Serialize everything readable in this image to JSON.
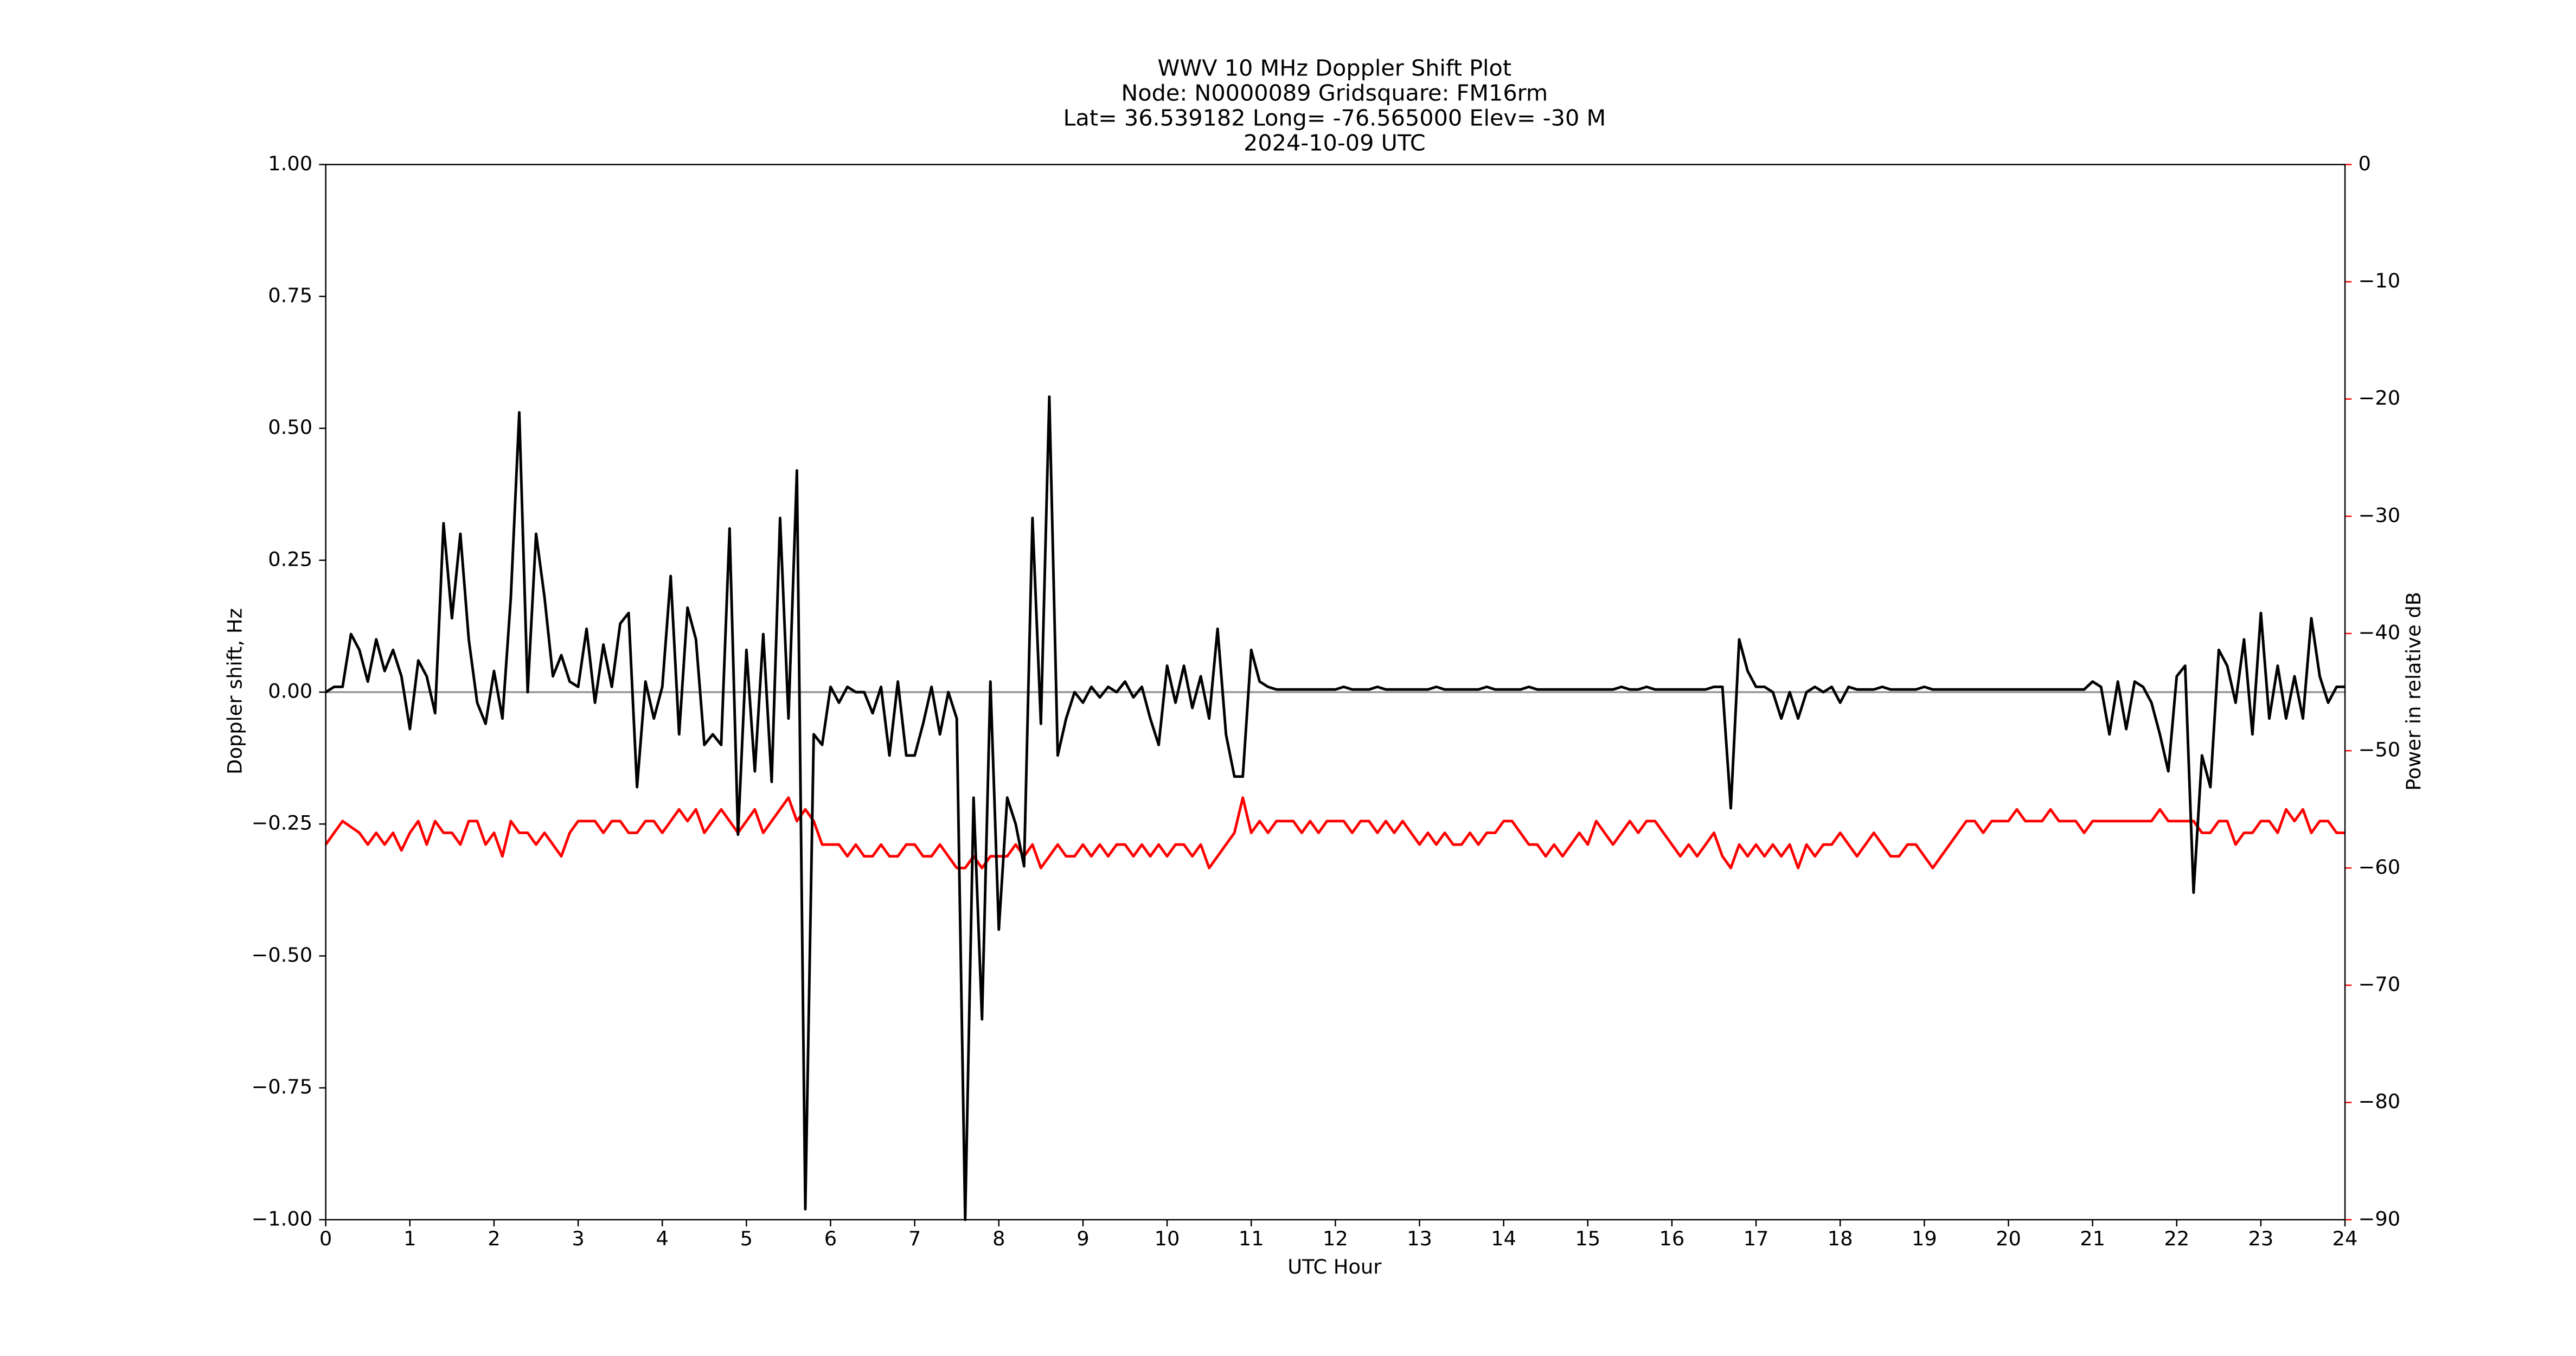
{
  "chart_data": {
    "type": "line",
    "title": [
      "WWV 10 MHz Doppler Shift Plot",
      "Node:  N0000089     Gridsquare:  FM16rm",
      "Lat= 36.539182    Long= -76.565000    Elev= -30 M",
      "2024-10-09  UTC"
    ],
    "xlabel": "UTC Hour",
    "ylabel": "Doppler shift, Hz",
    "y2label": "Power in relative dB",
    "x": [
      0,
      0.1,
      0.2,
      0.3,
      0.4,
      0.5,
      0.6,
      0.7,
      0.8,
      0.9,
      1,
      1.1,
      1.2,
      1.3,
      1.4,
      1.5,
      1.6,
      1.7,
      1.8,
      1.9,
      2,
      2.1,
      2.2,
      2.3,
      2.4,
      2.5,
      2.6,
      2.7,
      2.8,
      2.9,
      3,
      3.1,
      3.2,
      3.3,
      3.4,
      3.5,
      3.6,
      3.7,
      3.8,
      3.9,
      4,
      4.1,
      4.2,
      4.3,
      4.4,
      4.5,
      4.6,
      4.7,
      4.8,
      4.9,
      5,
      5.1,
      5.2,
      5.3,
      5.4,
      5.5,
      5.6,
      5.7,
      5.8,
      5.9,
      6,
      6.1,
      6.2,
      6.3,
      6.4,
      6.5,
      6.6,
      6.7,
      6.8,
      6.9,
      7,
      7.1,
      7.2,
      7.3,
      7.4,
      7.5,
      7.6,
      7.7,
      7.8,
      7.9,
      8,
      8.1,
      8.2,
      8.3,
      8.4,
      8.5,
      8.6,
      8.7,
      8.8,
      8.9,
      9,
      9.1,
      9.2,
      9.3,
      9.4,
      9.5,
      9.6,
      9.7,
      9.8,
      9.9,
      10,
      10.1,
      10.2,
      10.3,
      10.4,
      10.5,
      10.6,
      10.7,
      10.8,
      10.9,
      11,
      11.1,
      11.2,
      11.3,
      11.4,
      11.5,
      11.6,
      11.7,
      11.8,
      11.9,
      12,
      12.1,
      12.2,
      12.3,
      12.4,
      12.5,
      12.6,
      12.7,
      12.8,
      12.9,
      13,
      13.1,
      13.2,
      13.3,
      13.4,
      13.5,
      13.6,
      13.7,
      13.8,
      13.9,
      14,
      14.1,
      14.2,
      14.3,
      14.4,
      14.5,
      14.6,
      14.7,
      14.8,
      14.9,
      15,
      15.1,
      15.2,
      15.3,
      15.4,
      15.5,
      15.6,
      15.7,
      15.8,
      15.9,
      16,
      16.1,
      16.2,
      16.3,
      16.4,
      16.5,
      16.6,
      16.7,
      16.8,
      16.9,
      17,
      17.1,
      17.2,
      17.3,
      17.4,
      17.5,
      17.6,
      17.7,
      17.8,
      17.9,
      18,
      18.1,
      18.2,
      18.3,
      18.4,
      18.5,
      18.6,
      18.7,
      18.8,
      18.9,
      19,
      19.1,
      19.2,
      19.3,
      19.4,
      19.5,
      19.6,
      19.7,
      19.8,
      19.9,
      20,
      20.1,
      20.2,
      20.3,
      20.4,
      20.5,
      20.6,
      20.7,
      20.8,
      20.9,
      21,
      21.1,
      21.2,
      21.3,
      21.4,
      21.5,
      21.6,
      21.7,
      21.8,
      21.9,
      22,
      22.1,
      22.2,
      22.3,
      22.4,
      22.5,
      22.6,
      22.7,
      22.8,
      22.9,
      23,
      23.1,
      23.2,
      23.3,
      23.4,
      23.5,
      23.6,
      23.7,
      23.8,
      23.9,
      24
    ],
    "series": [
      {
        "color": "#000000",
        "values": [
          0,
          0.01,
          0.01,
          0.11,
          0.08,
          0.02,
          0.1,
          0.04,
          0.08,
          0.03,
          -0.07,
          0.06,
          0.03,
          -0.04,
          0.32,
          0.14,
          0.3,
          0.1,
          -0.02,
          -0.06,
          0.04,
          -0.05,
          0.18,
          0.53,
          0,
          0.3,
          0.18,
          0.03,
          0.07,
          0.02,
          0.01,
          0.12,
          -0.02,
          0.09,
          0.01,
          0.13,
          0.15,
          -0.18,
          0.02,
          -0.05,
          0.01,
          0.22,
          -0.08,
          0.16,
          0.1,
          -0.1,
          -0.08,
          -0.1,
          0.31,
          -0.27,
          0.08,
          -0.15,
          0.11,
          -0.17,
          0.33,
          -0.05,
          0.42,
          -0.98,
          -0.08,
          -0.1,
          0.01,
          -0.02,
          0.01,
          0,
          0,
          -0.04,
          0.01,
          -0.12,
          0.02,
          -0.12,
          -0.12,
          -0.06,
          0.01,
          -0.08,
          0,
          -0.05,
          -1.0,
          -0.2,
          -0.62,
          0.02,
          -0.45,
          -0.2,
          -0.25,
          -0.33,
          0.33,
          -0.06,
          0.56,
          -0.12,
          -0.05,
          0,
          -0.02,
          0.01,
          -0.01,
          0.01,
          0,
          0.02,
          -0.01,
          0.01,
          -0.05,
          -0.1,
          0.05,
          -0.02,
          0.05,
          -0.03,
          0.03,
          -0.05,
          0.12,
          -0.08,
          -0.16,
          -0.16,
          0.08,
          0.02,
          0.01,
          0.005,
          0.005,
          0.005,
          0.005,
          0.005,
          0.005,
          0.005,
          0.005,
          0.01,
          0.005,
          0.005,
          0.005,
          0.01,
          0.005,
          0.005,
          0.005,
          0.005,
          0.005,
          0.005,
          0.01,
          0.005,
          0.005,
          0.005,
          0.005,
          0.005,
          0.01,
          0.005,
          0.005,
          0.005,
          0.005,
          0.01,
          0.005,
          0.005,
          0.005,
          0.005,
          0.005,
          0.005,
          0.005,
          0.005,
          0.005,
          0.005,
          0.01,
          0.005,
          0.005,
          0.01,
          0.005,
          0.005,
          0.005,
          0.005,
          0.005,
          0.005,
          0.005,
          0.01,
          0.01,
          -0.22,
          0.1,
          0.04,
          0.01,
          0.01,
          0,
          -0.05,
          0,
          -0.05,
          0,
          0.01,
          0,
          0.01,
          -0.02,
          0.01,
          0.005,
          0.005,
          0.005,
          0.01,
          0.005,
          0.005,
          0.005,
          0.005,
          0.01,
          0.005,
          0.005,
          0.005,
          0.005,
          0.005,
          0.005,
          0.005,
          0.005,
          0.005,
          0.005,
          0.005,
          0.005,
          0.005,
          0.005,
          0.005,
          0.005,
          0.005,
          0.005,
          0.005,
          0.02,
          0.01,
          -0.08,
          0.02,
          -0.07,
          0.02,
          0.01,
          -0.02,
          -0.08,
          -0.15,
          0.03,
          0.05,
          -0.38,
          -0.12,
          -0.18,
          0.08,
          0.05,
          -0.02,
          0.1,
          -0.08,
          0.15,
          -0.05,
          0.05,
          -0.05,
          0.03,
          -0.05,
          0.14,
          0.03,
          -0.02,
          0.01,
          0.01
        ]
      },
      {
        "color": "#ff0000",
        "axis": "y2",
        "values": [
          -58,
          -57,
          -56,
          -56.5,
          -57,
          -58,
          -57,
          -58,
          -57,
          -58.5,
          -57,
          -56,
          -58,
          -56,
          -57,
          -57,
          -58,
          -56,
          -56,
          -58,
          -57,
          -59,
          -56,
          -57,
          -57,
          -58,
          -57,
          -58,
          -59,
          -57,
          -56,
          -56,
          -56,
          -57,
          -56,
          -56,
          -57,
          -57,
          -56,
          -56,
          -57,
          -56,
          -55,
          -56,
          -55,
          -57,
          -56,
          -55,
          -56,
          -57,
          -56,
          -55,
          -57,
          -56,
          -55,
          -54,
          -56,
          -55,
          -56,
          -58,
          -58,
          -58,
          -59,
          -58,
          -59,
          -59,
          -58,
          -59,
          -59,
          -58,
          -58,
          -59,
          -59,
          -58,
          -59,
          -60,
          -60,
          -59,
          -60,
          -59,
          -59,
          -59,
          -58,
          -59,
          -58,
          -60,
          -59,
          -58,
          -59,
          -59,
          -58,
          -59,
          -58,
          -59,
          -58,
          -58,
          -59,
          -58,
          -59,
          -58,
          -59,
          -58,
          -58,
          -59,
          -58,
          -60,
          -59,
          -58,
          -57,
          -54,
          -57,
          -56,
          -57,
          -56,
          -56,
          -56,
          -57,
          -56,
          -57,
          -56,
          -56,
          -56,
          -57,
          -56,
          -56,
          -57,
          -56,
          -57,
          -56,
          -57,
          -58,
          -57,
          -58,
          -57,
          -58,
          -58,
          -57,
          -58,
          -57,
          -57,
          -56,
          -56,
          -57,
          -58,
          -58,
          -59,
          -58,
          -59,
          -58,
          -57,
          -58,
          -56,
          -57,
          -58,
          -57,
          -56,
          -57,
          -56,
          -56,
          -57,
          -58,
          -59,
          -58,
          -59,
          -58,
          -57,
          -59,
          -60,
          -58,
          -59,
          -58,
          -59,
          -58,
          -59,
          -58,
          -60,
          -58,
          -59,
          -58,
          -58,
          -57,
          -58,
          -59,
          -58,
          -57,
          -58,
          -59,
          -59,
          -58,
          -58,
          -59,
          -60,
          -59,
          -58,
          -57,
          -56,
          -56,
          -57,
          -56,
          -56,
          -56,
          -55,
          -56,
          -56,
          -56,
          -55,
          -56,
          -56,
          -56,
          -57,
          -56,
          -56,
          -56,
          -56,
          -56,
          -56,
          -56,
          -56,
          -55,
          -56,
          -56,
          -56,
          -56,
          -57,
          -57,
          -56,
          -56,
          -58,
          -57,
          -57,
          -56,
          -56,
          -57,
          -55,
          -56,
          -55,
          -57,
          -56,
          -56,
          -57,
          -57
        ]
      }
    ],
    "xlim": [
      0,
      24
    ],
    "xticks": [
      0,
      1,
      2,
      3,
      4,
      5,
      6,
      7,
      8,
      9,
      10,
      11,
      12,
      13,
      14,
      15,
      16,
      17,
      18,
      19,
      20,
      21,
      22,
      23,
      24
    ],
    "ylim": [
      -1,
      1
    ],
    "yticks": [
      {
        "value": -1,
        "label": "−1.00"
      },
      {
        "value": -0.75,
        "label": "−0.75"
      },
      {
        "value": -0.5,
        "label": "−0.50"
      },
      {
        "value": -0.25,
        "label": "−0.25"
      },
      {
        "value": 0,
        "label": "0.00"
      },
      {
        "value": 0.25,
        "label": "0.25"
      },
      {
        "value": 0.5,
        "label": "0.50"
      },
      {
        "value": 0.75,
        "label": "0.75"
      },
      {
        "value": 1,
        "label": "1.00"
      }
    ],
    "y2lim": [
      -90,
      0
    ],
    "y2ticks": [
      {
        "value": -90,
        "label": "−90"
      },
      {
        "value": -80,
        "label": "−80"
      },
      {
        "value": -70,
        "label": "−70"
      },
      {
        "value": -60,
        "label": "−60"
      },
      {
        "value": -50,
        "label": "−50"
      },
      {
        "value": -40,
        "label": "−40"
      },
      {
        "value": -30,
        "label": "−30"
      },
      {
        "value": -20,
        "label": "−20"
      },
      {
        "value": -10,
        "label": "−10"
      },
      0
    ],
    "y2color": "#ff0000"
  }
}
